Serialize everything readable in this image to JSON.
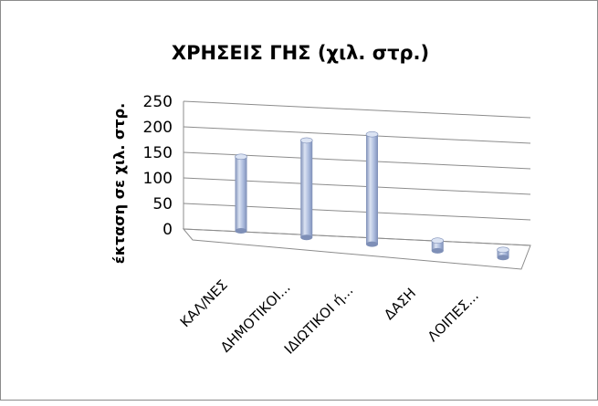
{
  "chart_data": {
    "type": "bar",
    "title": "ΧΡΗΣΕΙΣ ΓΗΣ (χιλ. στρ.)",
    "ylabel": "έκταση σε χιλ. στρ.",
    "xlabel": "",
    "categories": [
      "ΚΑΛ/ΝΕΣ",
      "ΔΗΜΟΤΙΚΟΙ...",
      "ΙΔΙΩΤΙΚΟΙ ή...",
      "ΔΑΣΗ",
      "ΛΟΙΠΕΣ..."
    ],
    "values": [
      145,
      190,
      215,
      20,
      15
    ],
    "ylim": [
      0,
      250
    ],
    "yticks": [
      "0",
      "50",
      "100",
      "150",
      "200",
      "250"
    ],
    "grid": true,
    "legend": "none",
    "style": "3d-cylinder",
    "colors": {
      "bar": "#a9b9dc",
      "bar_dark": "#7e8fb7",
      "bar_light": "#dbe3f3",
      "grid": "#8c8c8c"
    }
  }
}
